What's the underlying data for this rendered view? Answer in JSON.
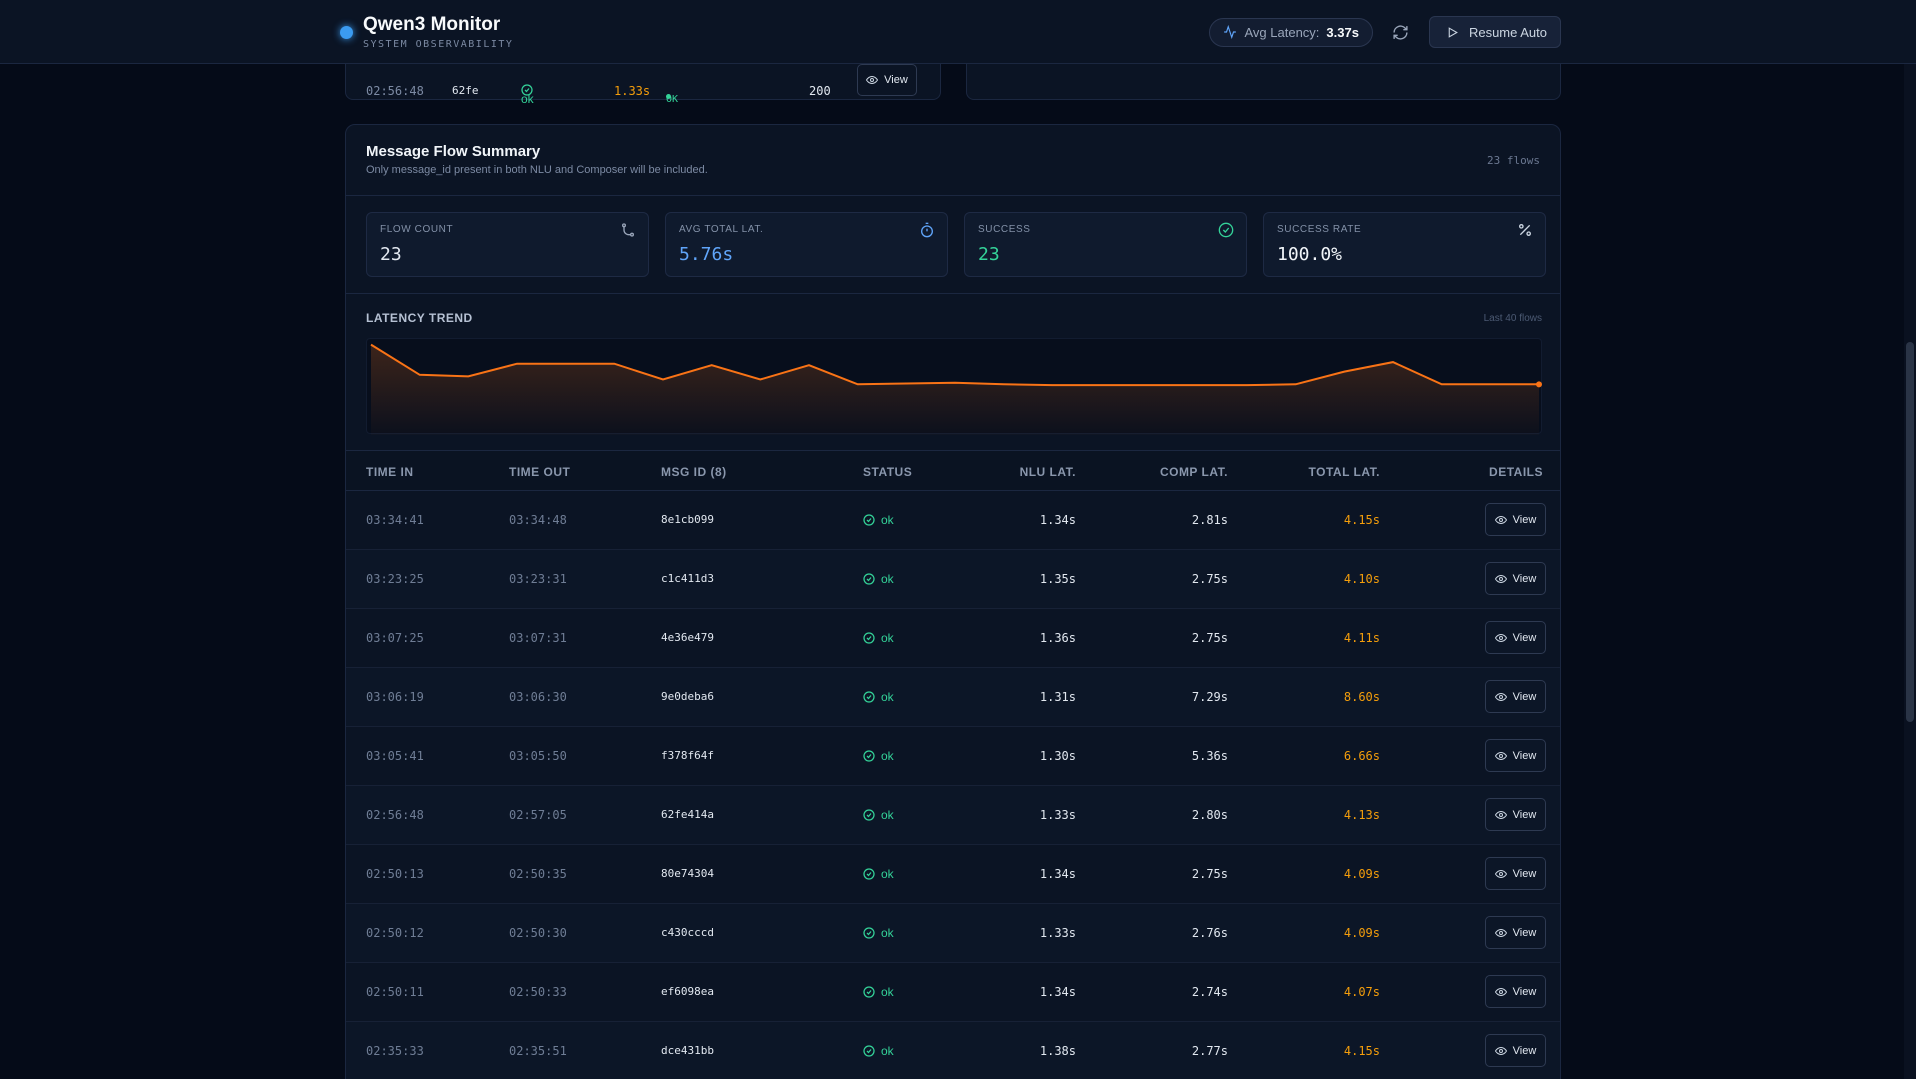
{
  "header": {
    "title": "Qwen3 Monitor",
    "subtitle": "SYSTEM OBSERVABILITY",
    "avg_latency_label": "Avg Latency:",
    "avg_latency_value": "3.37s",
    "resume_label": "Resume Auto"
  },
  "prev_panel": {
    "time": "02:56:48",
    "id": "62fe",
    "status": "ok",
    "latency": "1.33s",
    "http_status": "OK",
    "code": "200",
    "view_label": "View"
  },
  "summary": {
    "title": "Message Flow Summary",
    "subtitle": "Only message_id present in both NLU and Composer will be included.",
    "flow_count_text": "23 flows",
    "stats": [
      {
        "label": "FLOW COUNT",
        "value": "23",
        "icon": "branch-icon",
        "color": "#e2e8f0"
      },
      {
        "label": "AVG TOTAL LAT.",
        "value": "5.76s",
        "icon": "timer-icon",
        "color": "#60a5fa"
      },
      {
        "label": "SUCCESS",
        "value": "23",
        "icon": "check-circle-icon",
        "color": "#34d399"
      },
      {
        "label": "SUCCESS RATE",
        "value": "100.0%",
        "icon": "percent-icon",
        "color": "#f1f5f9"
      }
    ]
  },
  "trend": {
    "title": "LATENCY TREND",
    "note": "Last 40 flows"
  },
  "chart_data": {
    "type": "area",
    "title": "LATENCY TREND",
    "values": [
      8.6,
      6.7,
      6.6,
      7.4,
      7.4,
      7.4,
      6.4,
      7.3,
      6.4,
      7.3,
      6.1,
      6.15,
      6.2,
      6.1,
      6.05,
      6.05,
      6.05,
      6.05,
      6.05,
      6.1,
      6.9,
      7.5,
      6.1,
      6.1,
      6.1
    ],
    "color": "#f97316"
  },
  "table": {
    "headers": [
      "TIME IN",
      "TIME OUT",
      "MSG ID (8)",
      "STATUS",
      "NLU LAT.",
      "COMP LAT.",
      "TOTAL LAT.",
      "DETAILS"
    ],
    "view_label": "View",
    "rows": [
      {
        "time_in": "03:34:41",
        "time_out": "03:34:48",
        "msg_id": "8e1cb099",
        "status": "ok",
        "nlu": "1.34s",
        "comp": "2.81s",
        "total": "4.15s"
      },
      {
        "time_in": "03:23:25",
        "time_out": "03:23:31",
        "msg_id": "c1c411d3",
        "status": "ok",
        "nlu": "1.35s",
        "comp": "2.75s",
        "total": "4.10s"
      },
      {
        "time_in": "03:07:25",
        "time_out": "03:07:31",
        "msg_id": "4e36e479",
        "status": "ok",
        "nlu": "1.36s",
        "comp": "2.75s",
        "total": "4.11s"
      },
      {
        "time_in": "03:06:19",
        "time_out": "03:06:30",
        "msg_id": "9e0deba6",
        "status": "ok",
        "nlu": "1.31s",
        "comp": "7.29s",
        "total": "8.60s"
      },
      {
        "time_in": "03:05:41",
        "time_out": "03:05:50",
        "msg_id": "f378f64f",
        "status": "ok",
        "nlu": "1.30s",
        "comp": "5.36s",
        "total": "6.66s"
      },
      {
        "time_in": "02:56:48",
        "time_out": "02:57:05",
        "msg_id": "62fe414a",
        "status": "ok",
        "nlu": "1.33s",
        "comp": "2.80s",
        "total": "4.13s"
      },
      {
        "time_in": "02:50:13",
        "time_out": "02:50:35",
        "msg_id": "80e74304",
        "status": "ok",
        "nlu": "1.34s",
        "comp": "2.75s",
        "total": "4.09s"
      },
      {
        "time_in": "02:50:12",
        "time_out": "02:50:30",
        "msg_id": "c430cccd",
        "status": "ok",
        "nlu": "1.33s",
        "comp": "2.76s",
        "total": "4.09s"
      },
      {
        "time_in": "02:50:11",
        "time_out": "02:50:33",
        "msg_id": "ef6098ea",
        "status": "ok",
        "nlu": "1.34s",
        "comp": "2.74s",
        "total": "4.07s"
      },
      {
        "time_in": "02:35:33",
        "time_out": "02:35:51",
        "msg_id": "dce431bb",
        "status": "ok",
        "nlu": "1.38s",
        "comp": "2.77s",
        "total": "4.15s"
      }
    ]
  }
}
